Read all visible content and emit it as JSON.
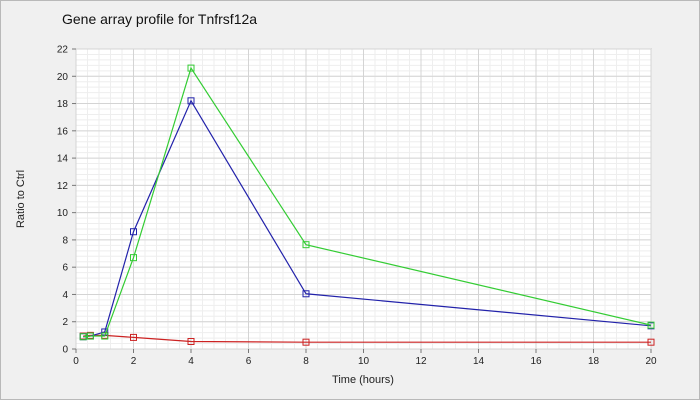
{
  "chart_data": {
    "type": "line",
    "title": "Gene array profile for Tnfrsf12a",
    "xlabel": "Time (hours)",
    "ylabel": "Ratio to Ctrl",
    "xlim": [
      0,
      20
    ],
    "ylim": [
      0,
      22
    ],
    "x_ticks": [
      0,
      2,
      4,
      6,
      8,
      10,
      12,
      14,
      16,
      18,
      20
    ],
    "y_ticks": [
      0,
      2,
      4,
      6,
      8,
      10,
      12,
      14,
      16,
      18,
      20,
      22
    ],
    "grid": true,
    "marker": "square",
    "series": [
      {
        "color": "#cc2222",
        "x": [
          0.25,
          0.5,
          1,
          2,
          4,
          8,
          20
        ],
        "y": [
          0.95,
          1.0,
          1.0,
          0.85,
          0.55,
          0.5,
          0.5
        ]
      },
      {
        "color": "#2222aa",
        "x": [
          0.25,
          0.5,
          1,
          2,
          4,
          8,
          20
        ],
        "y": [
          0.9,
          0.95,
          1.25,
          8.6,
          18.2,
          4.05,
          1.7
        ]
      },
      {
        "color": "#33cc33",
        "x": [
          0.25,
          0.5,
          1,
          2,
          4,
          8,
          20
        ],
        "y": [
          0.9,
          0.95,
          0.95,
          6.7,
          20.6,
          7.65,
          1.75
        ]
      }
    ]
  }
}
